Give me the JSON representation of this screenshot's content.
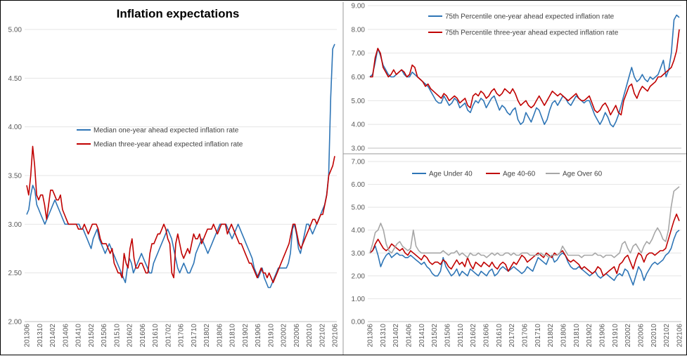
{
  "chart_data": [
    {
      "type": "line",
      "title": "Inflation expectations",
      "xlabel": "",
      "ylabel": "",
      "ylim": [
        2.0,
        5.0
      ],
      "yticks": [
        "2.00",
        "2.50",
        "3.00",
        "3.50",
        "4.00",
        "4.50",
        "5.00"
      ],
      "x_tick_labels": [
        "201306",
        "201310",
        "201402",
        "201406",
        "201410",
        "201502",
        "201506",
        "201510",
        "201602",
        "201606",
        "201610",
        "201702",
        "201706",
        "201710",
        "201802",
        "201806",
        "201810",
        "201902",
        "201906",
        "201910",
        "202002",
        "202006",
        "202010",
        "202102",
        "202106"
      ],
      "series": [
        {
          "name": "Median one-year ahead expected inflation rate",
          "color": "#2E75B6",
          "values": [
            3.1,
            3.15,
            3.3,
            3.4,
            3.35,
            3.2,
            3.15,
            3.1,
            3.05,
            3.0,
            3.05,
            3.1,
            3.15,
            3.2,
            3.25,
            3.2,
            3.15,
            3.1,
            3.05,
            3.0,
            3.0,
            3.0,
            3.0,
            3.0,
            3.0,
            3.0,
            3.0,
            2.95,
            2.95,
            2.9,
            2.85,
            2.8,
            2.75,
            2.85,
            2.9,
            2.95,
            2.85,
            2.8,
            2.75,
            2.7,
            2.75,
            2.8,
            2.75,
            2.7,
            2.65,
            2.6,
            2.55,
            2.5,
            2.45,
            2.4,
            2.55,
            2.65,
            2.6,
            2.5,
            2.55,
            2.6,
            2.65,
            2.7,
            2.65,
            2.6,
            2.55,
            2.5,
            2.5,
            2.6,
            2.65,
            2.7,
            2.75,
            2.8,
            2.85,
            2.9,
            2.95,
            2.9,
            2.85,
            2.75,
            2.65,
            2.55,
            2.5,
            2.55,
            2.6,
            2.55,
            2.5,
            2.5,
            2.55,
            2.6,
            2.7,
            2.75,
            2.8,
            2.85,
            2.8,
            2.75,
            2.7,
            2.75,
            2.8,
            2.85,
            2.9,
            2.95,
            3.0,
            3.0,
            3.0,
            3.0,
            2.95,
            2.9,
            2.85,
            2.9,
            2.95,
            3.0,
            2.95,
            2.9,
            2.85,
            2.8,
            2.75,
            2.7,
            2.65,
            2.55,
            2.5,
            2.45,
            2.5,
            2.55,
            2.45,
            2.4,
            2.35,
            2.35,
            2.4,
            2.45,
            2.5,
            2.55,
            2.55,
            2.55,
            2.55,
            2.55,
            2.6,
            2.7,
            2.95,
            3.0,
            2.9,
            2.75,
            2.7,
            2.8,
            2.9,
            3.0,
            3.0,
            2.95,
            2.9,
            2.95,
            3.0,
            3.05,
            3.1,
            3.15,
            3.2,
            3.3,
            3.5,
            4.3,
            4.8,
            4.85
          ]
        },
        {
          "name": "Median three-year ahead expected inflation rate",
          "color": "#C00000",
          "values": [
            3.4,
            3.3,
            3.5,
            3.8,
            3.6,
            3.3,
            3.25,
            3.3,
            3.3,
            3.2,
            3.05,
            3.2,
            3.35,
            3.35,
            3.3,
            3.25,
            3.25,
            3.3,
            3.15,
            3.1,
            3.05,
            3.0,
            3.0,
            3.0,
            3.0,
            3.0,
            2.95,
            2.95,
            2.95,
            3.0,
            2.95,
            2.9,
            2.95,
            3.0,
            3.0,
            3.0,
            2.95,
            2.85,
            2.8,
            2.8,
            2.8,
            2.75,
            2.7,
            2.75,
            2.6,
            2.55,
            2.5,
            2.5,
            2.45,
            2.7,
            2.6,
            2.55,
            2.75,
            2.85,
            2.65,
            2.55,
            2.55,
            2.6,
            2.6,
            2.55,
            2.5,
            2.5,
            2.7,
            2.8,
            2.8,
            2.85,
            2.9,
            2.9,
            2.95,
            3.0,
            2.95,
            2.85,
            2.8,
            2.5,
            2.45,
            2.8,
            2.9,
            2.8,
            2.7,
            2.65,
            2.7,
            2.75,
            2.7,
            2.8,
            2.9,
            2.85,
            2.85,
            2.9,
            2.8,
            2.85,
            2.9,
            2.95,
            2.95,
            2.95,
            3.0,
            2.95,
            2.9,
            2.95,
            3.0,
            3.0,
            3.0,
            2.9,
            2.95,
            3.0,
            2.95,
            2.9,
            2.85,
            2.8,
            2.8,
            2.75,
            2.7,
            2.65,
            2.6,
            2.6,
            2.55,
            2.5,
            2.45,
            2.5,
            2.55,
            2.5,
            2.5,
            2.45,
            2.5,
            2.45,
            2.4,
            2.45,
            2.5,
            2.55,
            2.6,
            2.65,
            2.7,
            2.75,
            2.8,
            2.9,
            3.0,
            3.0,
            2.9,
            2.8,
            2.75,
            2.8,
            2.85,
            2.9,
            2.95,
            3.0,
            3.05,
            3.05,
            3.0,
            3.05,
            3.1,
            3.1,
            3.2,
            3.3,
            3.5,
            3.55,
            3.6,
            3.7
          ]
        }
      ]
    },
    {
      "type": "line",
      "title": "",
      "ylim": [
        3.0,
        9.0
      ],
      "yticks": [
        "3.00",
        "4.00",
        "5.00",
        "6.00",
        "7.00",
        "8.00",
        "9.00"
      ],
      "series": [
        {
          "name": "75th Percentile one-year ahead expected inflation rate",
          "color": "#2E75B6",
          "values": [
            6.0,
            6.1,
            6.6,
            7.2,
            6.9,
            6.5,
            6.3,
            6.1,
            6.0,
            6.0,
            6.1,
            6.2,
            6.3,
            6.1,
            6.0,
            6.0,
            6.2,
            6.1,
            6.0,
            5.9,
            5.8,
            5.7,
            5.6,
            5.4,
            5.2,
            5.0,
            4.9,
            4.9,
            5.2,
            5.0,
            4.8,
            4.9,
            5.1,
            5.0,
            4.7,
            4.8,
            4.9,
            4.6,
            4.5,
            4.8,
            5.0,
            4.9,
            5.1,
            5.0,
            4.7,
            4.9,
            5.1,
            5.2,
            4.9,
            4.6,
            4.8,
            4.7,
            4.5,
            4.4,
            4.6,
            4.7,
            4.2,
            4.0,
            4.1,
            4.5,
            4.3,
            4.1,
            4.4,
            4.7,
            4.6,
            4.3,
            4.0,
            4.2,
            4.6,
            4.9,
            5.0,
            4.8,
            5.0,
            5.2,
            5.1,
            4.9,
            4.8,
            5.0,
            5.2,
            5.1,
            5.0,
            4.9,
            5.0,
            5.0,
            4.7,
            4.4,
            4.2,
            4.0,
            4.2,
            4.5,
            4.3,
            4.0,
            3.9,
            4.1,
            4.4,
            4.8,
            5.2,
            5.6,
            6.0,
            6.4,
            6.0,
            5.8,
            5.9,
            6.1,
            5.9,
            5.8,
            6.0,
            5.9,
            6.0,
            6.1,
            6.4,
            6.7,
            6.0,
            6.3,
            7.0,
            8.4,
            8.6,
            8.5
          ]
        },
        {
          "name": "75th Percentile three-year ahead expected inflation rate",
          "color": "#C00000",
          "values": [
            6.0,
            6.0,
            6.8,
            7.2,
            7.0,
            6.4,
            6.2,
            6.0,
            6.1,
            6.3,
            6.1,
            6.2,
            6.3,
            6.2,
            6.0,
            6.1,
            6.5,
            6.4,
            6.0,
            5.9,
            5.8,
            5.6,
            5.7,
            5.5,
            5.4,
            5.3,
            5.2,
            5.1,
            5.3,
            5.2,
            5.0,
            5.1,
            5.2,
            5.1,
            4.9,
            5.0,
            5.1,
            4.8,
            4.7,
            5.2,
            5.3,
            5.2,
            5.4,
            5.3,
            5.1,
            5.2,
            5.4,
            5.5,
            5.3,
            5.2,
            5.3,
            5.5,
            5.4,
            5.3,
            5.5,
            5.3,
            5.0,
            4.8,
            4.9,
            5.0,
            4.8,
            4.7,
            4.8,
            5.0,
            5.2,
            5.0,
            4.8,
            5.0,
            5.2,
            5.4,
            5.3,
            5.2,
            5.3,
            5.2,
            5.1,
            5.0,
            5.1,
            5.2,
            5.3,
            5.1,
            5.0,
            5.0,
            5.1,
            5.2,
            4.9,
            4.6,
            4.5,
            4.6,
            4.8,
            4.9,
            4.7,
            4.4,
            4.6,
            4.8,
            4.5,
            4.4,
            5.0,
            5.3,
            5.6,
            5.7,
            5.3,
            5.1,
            5.4,
            5.6,
            5.5,
            5.4,
            5.6,
            5.7,
            5.8,
            6.0,
            6.0,
            6.1,
            6.2,
            6.3,
            6.4,
            6.7,
            7.1,
            8.0
          ]
        }
      ]
    },
    {
      "type": "line",
      "title": "",
      "ylim": [
        0.0,
        7.0
      ],
      "yticks": [
        "0.00",
        "1.00",
        "2.00",
        "3.00",
        "4.00",
        "5.00",
        "6.00",
        "7.00"
      ],
      "series": [
        {
          "name": "Age Under 40",
          "color": "#2E75B6",
          "values": [
            3.0,
            3.1,
            3.3,
            2.9,
            2.4,
            2.7,
            2.9,
            3.0,
            2.8,
            2.9,
            3.0,
            2.9,
            2.9,
            2.8,
            2.8,
            2.9,
            2.8,
            2.7,
            2.6,
            2.5,
            2.6,
            2.4,
            2.3,
            2.1,
            2.0,
            2.0,
            2.2,
            2.8,
            2.4,
            2.2,
            2.0,
            2.1,
            2.3,
            2.0,
            2.2,
            2.1,
            2.0,
            2.3,
            2.2,
            2.1,
            2.0,
            2.2,
            2.1,
            2.0,
            2.2,
            2.3,
            2.0,
            2.1,
            2.3,
            2.4,
            2.3,
            2.2,
            2.3,
            2.4,
            2.3,
            2.2,
            2.1,
            2.2,
            2.4,
            2.3,
            2.2,
            2.5,
            2.8,
            2.7,
            2.6,
            2.5,
            2.8,
            2.9,
            2.6,
            2.7,
            2.9,
            3.0,
            2.9,
            2.6,
            2.4,
            2.3,
            2.3,
            2.4,
            2.3,
            2.2,
            2.1,
            2.0,
            2.1,
            2.2,
            2.0,
            1.9,
            2.0,
            2.1,
            2.0,
            1.9,
            1.8,
            2.0,
            2.1,
            2.0,
            2.3,
            2.2,
            1.9,
            1.6,
            2.0,
            2.4,
            2.2,
            1.8,
            2.1,
            2.3,
            2.5,
            2.6,
            2.5,
            2.6,
            2.7,
            2.9,
            3.0,
            3.2,
            3.6,
            3.9,
            4.0
          ]
        },
        {
          "name": "Age 40-60",
          "color": "#C00000",
          "values": [
            3.0,
            3.1,
            3.4,
            3.6,
            3.4,
            3.2,
            3.1,
            3.2,
            3.4,
            3.3,
            3.2,
            3.1,
            3.2,
            3.0,
            2.9,
            3.1,
            3.0,
            2.9,
            2.8,
            2.7,
            2.9,
            2.8,
            2.6,
            2.5,
            2.6,
            2.6,
            2.5,
            2.7,
            2.6,
            2.4,
            2.3,
            2.5,
            2.7,
            2.5,
            2.6,
            2.4,
            2.8,
            2.5,
            2.3,
            2.6,
            2.5,
            2.4,
            2.6,
            2.5,
            2.4,
            2.6,
            2.4,
            2.3,
            2.5,
            2.6,
            2.5,
            2.2,
            2.4,
            2.6,
            2.5,
            2.7,
            2.9,
            2.8,
            2.6,
            2.7,
            2.8,
            2.9,
            3.0,
            2.9,
            2.8,
            3.0,
            2.9,
            2.8,
            3.0,
            2.9,
            3.0,
            3.1,
            2.9,
            2.7,
            2.6,
            2.7,
            2.6,
            2.5,
            2.3,
            2.4,
            2.3,
            2.2,
            2.1,
            2.2,
            2.4,
            2.3,
            2.0,
            2.1,
            2.2,
            2.3,
            2.4,
            2.1,
            2.5,
            2.6,
            2.8,
            2.9,
            2.6,
            2.3,
            2.7,
            3.0,
            2.9,
            2.6,
            2.9,
            3.0,
            3.0,
            2.9,
            3.0,
            3.1,
            3.1,
            3.2,
            3.6,
            4.0,
            4.4,
            4.7,
            4.4
          ]
        },
        {
          "name": "Age Over 60",
          "color": "#A6A6A6",
          "values": [
            3.0,
            3.4,
            3.9,
            4.0,
            4.3,
            4.0,
            3.4,
            3.1,
            3.0,
            3.2,
            3.4,
            3.5,
            3.3,
            3.2,
            3.1,
            3.2,
            4.0,
            3.3,
            3.1,
            3.0,
            3.0,
            3.0,
            3.0,
            3.0,
            3.0,
            3.0,
            3.0,
            3.1,
            3.0,
            2.9,
            3.0,
            3.0,
            3.1,
            2.9,
            3.0,
            2.9,
            2.8,
            3.0,
            2.9,
            2.9,
            3.0,
            2.9,
            2.9,
            2.8,
            2.9,
            3.0,
            2.9,
            3.0,
            2.9,
            2.9,
            3.0,
            3.0,
            2.9,
            3.0,
            2.9,
            2.9,
            3.0,
            3.0,
            3.0,
            2.9,
            2.9,
            2.9,
            2.9,
            3.0,
            2.9,
            2.9,
            2.8,
            2.9,
            2.9,
            2.9,
            3.0,
            3.3,
            3.1,
            2.9,
            2.9,
            2.9,
            2.9,
            2.9,
            2.8,
            2.9,
            2.9,
            2.9,
            2.9,
            3.0,
            2.9,
            2.9,
            2.8,
            2.9,
            2.9,
            2.9,
            2.8,
            2.9,
            3.0,
            3.4,
            3.5,
            3.2,
            3.0,
            3.3,
            3.4,
            3.2,
            3.0,
            3.3,
            3.5,
            3.4,
            3.6,
            3.9,
            4.1,
            3.9,
            3.6,
            3.5,
            4.0,
            5.0,
            5.7,
            5.8,
            5.9
          ]
        }
      ]
    }
  ]
}
